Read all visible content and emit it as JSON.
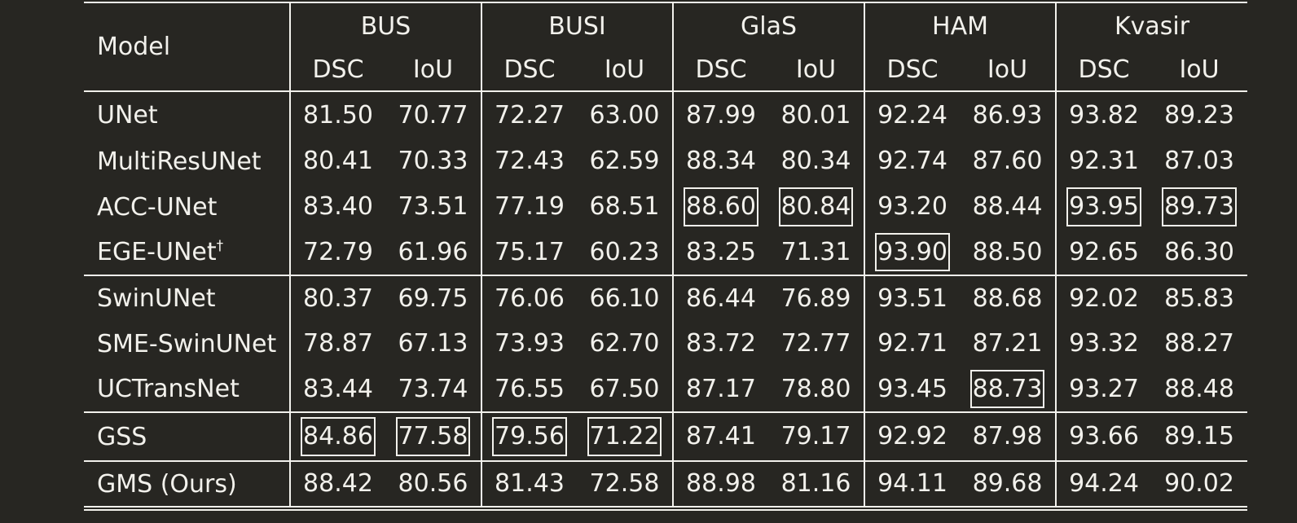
{
  "table": {
    "model_header": "Model",
    "datasets": [
      "BUS",
      "BUSI",
      "GlaS",
      "HAM",
      "Kvasir"
    ],
    "metrics": [
      "DSC",
      "IoU"
    ],
    "rows": [
      {
        "name": "UNet",
        "sup": "",
        "values": [
          "81.50",
          "70.77",
          "72.27",
          "63.00",
          "87.99",
          "80.01",
          "92.24",
          "86.93",
          "93.82",
          "89.23"
        ],
        "boxed": []
      },
      {
        "name": "MultiResUNet",
        "sup": "",
        "values": [
          "80.41",
          "70.33",
          "72.43",
          "62.59",
          "88.34",
          "80.34",
          "92.74",
          "87.60",
          "92.31",
          "87.03"
        ],
        "boxed": []
      },
      {
        "name": "ACC-UNet",
        "sup": "",
        "values": [
          "83.40",
          "73.51",
          "77.19",
          "68.51",
          "88.60",
          "80.84",
          "93.20",
          "88.44",
          "93.95",
          "89.73"
        ],
        "boxed": [
          4,
          5,
          8,
          9
        ]
      },
      {
        "name": "EGE-UNet",
        "sup": "†",
        "values": [
          "72.79",
          "61.96",
          "75.17",
          "60.23",
          "83.25",
          "71.31",
          "93.90",
          "88.50",
          "92.65",
          "86.30"
        ],
        "boxed": [
          6
        ]
      },
      {
        "name": "SwinUNet",
        "sup": "",
        "values": [
          "80.37",
          "69.75",
          "76.06",
          "66.10",
          "86.44",
          "76.89",
          "93.51",
          "88.68",
          "92.02",
          "85.83"
        ],
        "boxed": []
      },
      {
        "name": "SME-SwinUNet",
        "sup": "",
        "values": [
          "78.87",
          "67.13",
          "73.93",
          "62.70",
          "83.72",
          "72.77",
          "92.71",
          "87.21",
          "93.32",
          "88.27"
        ],
        "boxed": []
      },
      {
        "name": "UCTransNet",
        "sup": "",
        "values": [
          "83.44",
          "73.74",
          "76.55",
          "67.50",
          "87.17",
          "78.80",
          "93.45",
          "88.73",
          "93.27",
          "88.48"
        ],
        "boxed": [
          7
        ]
      },
      {
        "name": "GSS",
        "sup": "",
        "values": [
          "84.86",
          "77.58",
          "79.56",
          "71.22",
          "87.41",
          "79.17",
          "92.92",
          "87.98",
          "93.66",
          "89.15"
        ],
        "boxed": [
          0,
          1,
          2,
          3
        ]
      },
      {
        "name": "GMS (Ours)",
        "sup": "",
        "values": [
          "88.42",
          "80.56",
          "81.43",
          "72.58",
          "88.98",
          "81.16",
          "94.11",
          "89.68",
          "94.24",
          "90.02"
        ],
        "boxed": [],
        "bold": true
      }
    ]
  }
}
